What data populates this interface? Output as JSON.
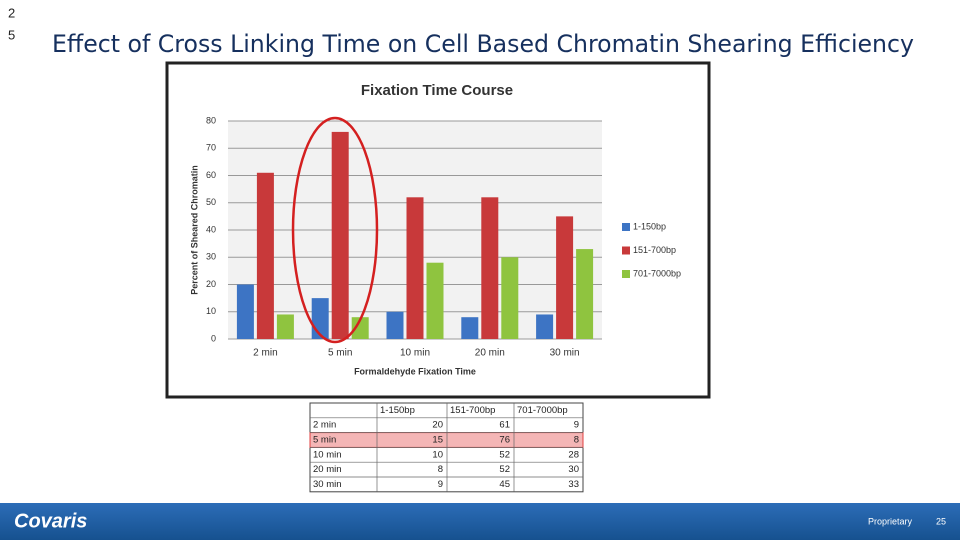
{
  "slide_marker": [
    "2",
    "5"
  ],
  "title": "Effect of Cross Linking Time on Cell Based Chromatin Shearing Efficiency",
  "chart_data": {
    "type": "bar",
    "title": "Fixation Time Course",
    "x_label": "Formaldehyde Fixation Time",
    "y_label": "Percent of Sheared Chromatin",
    "categories": [
      "2 min",
      "5 min",
      "10 min",
      "20 min",
      "30 min"
    ],
    "series": [
      {
        "name": "1-150bp",
        "color": "#3d74c4",
        "values": [
          20,
          15,
          10,
          8,
          9
        ]
      },
      {
        "name": "151-700bp",
        "color": "#c8393a",
        "values": [
          61,
          76,
          52,
          52,
          45
        ]
      },
      {
        "name": "701-7000bp",
        "color": "#8fc43f",
        "values": [
          9,
          8,
          28,
          30,
          33
        ]
      }
    ],
    "ylim": [
      0,
      80
    ],
    "yticks": [
      0,
      10,
      20,
      30,
      40,
      50,
      60,
      70,
      80
    ],
    "grid": true,
    "legend": "right"
  },
  "table": {
    "header": [
      "1-150bp",
      "151-700bp",
      "701-7000bp"
    ],
    "rows": [
      [
        "2 min",
        "20",
        "61",
        "9"
      ],
      [
        "5 min",
        "15",
        "76",
        "8"
      ],
      [
        "10 min",
        "10",
        "52",
        "28"
      ],
      [
        "20 min",
        "8",
        "52",
        "30"
      ],
      [
        "30 min",
        "9",
        "45",
        "33"
      ]
    ],
    "highlight_row": 1
  },
  "footer": {
    "logo": "Covaris",
    "label": "Proprietary",
    "page": "25"
  }
}
